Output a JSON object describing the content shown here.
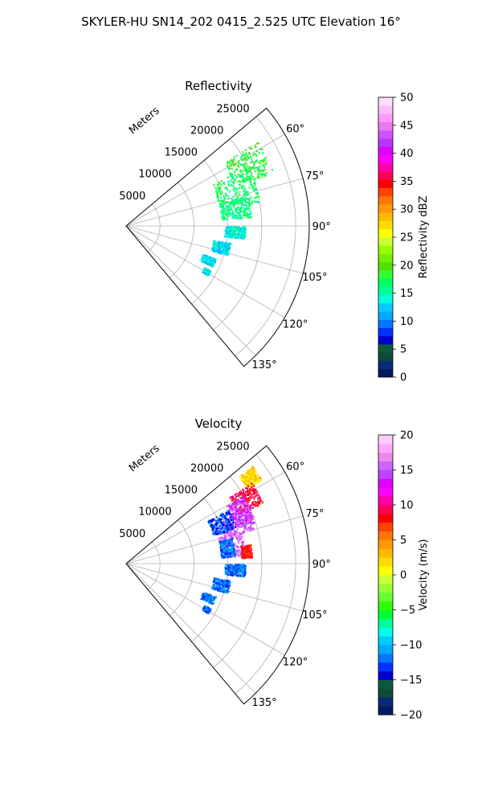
{
  "figure_title": "SKYLER-HU  SN14_202  0415_2.525 UTC Elevation 16°",
  "chart_data": [
    {
      "type": "heatmap",
      "projection": "polar-sector",
      "title": "Reflectivity",
      "range_label": "Meters",
      "range_ticks": [
        5000,
        10000,
        15000,
        20000,
        25000
      ],
      "range_tick_labels": [
        "5000",
        "10000",
        "15000",
        "20000",
        "25000"
      ],
      "range_max": 27000,
      "azimuth_range_deg": [
        50,
        140
      ],
      "azimuth_ticks_deg": [
        60,
        75,
        90,
        105,
        120,
        135
      ],
      "azimuth_tick_labels": [
        "60°",
        "75°",
        "90°",
        "105°",
        "120°",
        "135°"
      ],
      "grid": true,
      "colorbar": {
        "label": "Reflectivity dBZ",
        "range": [
          0,
          50
        ],
        "ticks": [
          0,
          5,
          10,
          15,
          20,
          25,
          30,
          35,
          40,
          45,
          50
        ],
        "tick_labels": [
          "0",
          "5",
          "10",
          "15",
          "20",
          "25",
          "30",
          "35",
          "40",
          "45",
          "50"
        ]
      },
      "echo_regions": [
        {
          "az": [
            57,
            70
          ],
          "range": [
            17000,
            23000
          ],
          "value": 18
        },
        {
          "az": [
            64,
            80
          ],
          "range": [
            14000,
            20000
          ],
          "value": 17
        },
        {
          "az": [
            76,
            86
          ],
          "range": [
            14000,
            18500
          ],
          "value": 16
        },
        {
          "az": [
            90,
            96
          ],
          "range": [
            14500,
            17500
          ],
          "value": 14
        },
        {
          "az": [
            99,
            106
          ],
          "range": [
            13000,
            15500
          ],
          "value": 13
        },
        {
          "az": [
            110,
            115
          ],
          "range": [
            12000,
            14000
          ],
          "value": 13
        },
        {
          "az": [
            118,
            121
          ],
          "range": [
            13000,
            14000
          ],
          "value": 13
        }
      ]
    },
    {
      "type": "heatmap",
      "projection": "polar-sector",
      "title": "Velocity",
      "range_label": "Meters",
      "range_ticks": [
        5000,
        10000,
        15000,
        20000,
        25000
      ],
      "range_tick_labels": [
        "5000",
        "10000",
        "15000",
        "20000",
        "25000"
      ],
      "range_max": 27000,
      "azimuth_range_deg": [
        50,
        140
      ],
      "azimuth_ticks_deg": [
        60,
        75,
        90,
        105,
        120,
        135
      ],
      "azimuth_tick_labels": [
        "60°",
        "75°",
        "90°",
        "105°",
        "120°",
        "135°"
      ],
      "grid": true,
      "colorbar": {
        "label": "Velocity (m/s)",
        "range": [
          -20,
          20
        ],
        "ticks": [
          -20,
          -15,
          -10,
          -5,
          0,
          5,
          10,
          15,
          20
        ],
        "tick_labels": [
          "−20",
          "−15",
          "−10",
          "−5",
          "0",
          "5",
          "10",
          "15",
          "20"
        ]
      },
      "echo_regions": [
        {
          "az": [
            52,
            58
          ],
          "range": [
            21000,
            23500
          ],
          "value": 2
        },
        {
          "az": [
            57,
            66
          ],
          "range": [
            18000,
            22000
          ],
          "value": 9
        },
        {
          "az": [
            60,
            72
          ],
          "range": [
            17000,
            20000
          ],
          "value": 14
        },
        {
          "az": [
            65,
            75
          ],
          "range": [
            15000,
            19500
          ],
          "value": 15
        },
        {
          "az": [
            62,
            72
          ],
          "range": [
            13500,
            17000
          ],
          "value": -13
        },
        {
          "az": [
            74,
            86
          ],
          "range": [
            14000,
            17500
          ],
          "value": 16
        },
        {
          "az": [
            76,
            86
          ],
          "range": [
            14000,
            16000
          ],
          "value": -12
        },
        {
          "az": [
            81,
            87
          ],
          "range": [
            17000,
            18500
          ],
          "value": 8
        },
        {
          "az": [
            90,
            96
          ],
          "range": [
            14500,
            17500
          ],
          "value": -12
        },
        {
          "az": [
            99,
            106
          ],
          "range": [
            13000,
            15500
          ],
          "value": -12
        },
        {
          "az": [
            110,
            115
          ],
          "range": [
            12000,
            14000
          ],
          "value": -12
        },
        {
          "az": [
            118,
            121
          ],
          "range": [
            13000,
            14000
          ],
          "value": -12
        }
      ]
    }
  ]
}
